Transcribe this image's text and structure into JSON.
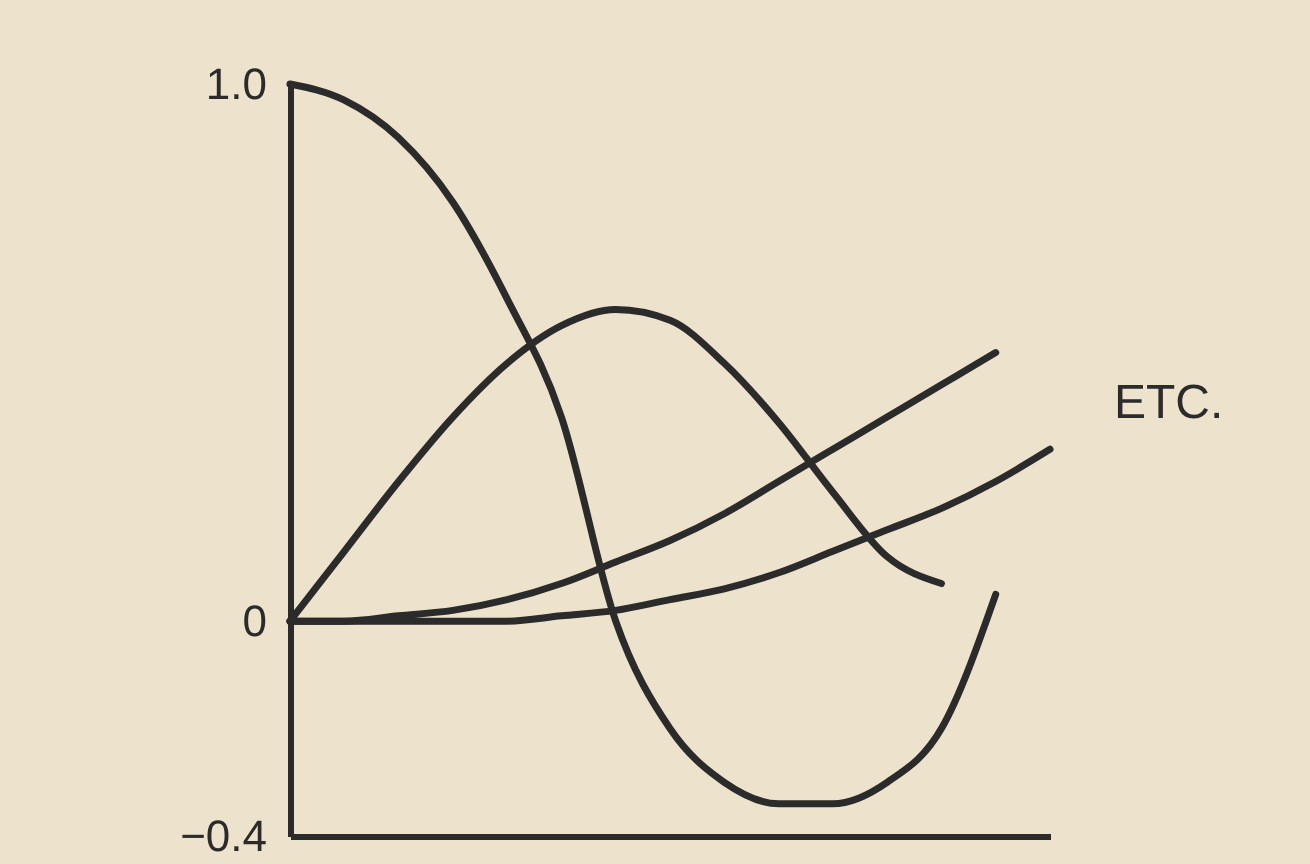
{
  "chart_data": {
    "type": "line",
    "categories": [
      null,
      null,
      null,
      null,
      null,
      null,
      null,
      null,
      null,
      null,
      null,
      null,
      null,
      null,
      null
    ],
    "series": [
      {
        "color": "#2b2b2b",
        "values": [
          1.0,
          0.97,
          0.9,
          0.78,
          0.6,
          0.38,
          0.0,
          -0.2,
          -0.3,
          -0.34,
          -0.34,
          -0.3,
          -0.2,
          0.05,
          null
        ]
      },
      {
        "color": "#2b2b2b",
        "values": [
          0,
          0.13,
          0.26,
          0.38,
          0.48,
          0.55,
          0.58,
          0.56,
          0.48,
          0.37,
          0.24,
          0.12,
          0.07,
          null,
          null
        ]
      },
      {
        "color": "#2b2b2b",
        "values": [
          0,
          0,
          0.01,
          0.02,
          0.04,
          0.07,
          0.11,
          0.15,
          0.2,
          0.26,
          0.32,
          0.38,
          0.44,
          0.5,
          null
        ]
      },
      {
        "color": "#2b2b2b",
        "values": [
          0,
          0,
          0,
          0,
          0,
          0.01,
          0.02,
          0.04,
          0.06,
          0.09,
          0.13,
          0.17,
          0.21,
          0.26,
          0.32
        ]
      }
    ],
    "ylim": [
      -0.4,
      1.0
    ],
    "yticks": [
      {
        "value": 1.0,
        "label": "1.0"
      },
      0,
      -0.4
    ],
    "tick_labels": "y",
    "grid": false,
    "legend": false,
    "marker": "none",
    "line_style": "solid",
    "annotations": [
      "ETC."
    ]
  }
}
